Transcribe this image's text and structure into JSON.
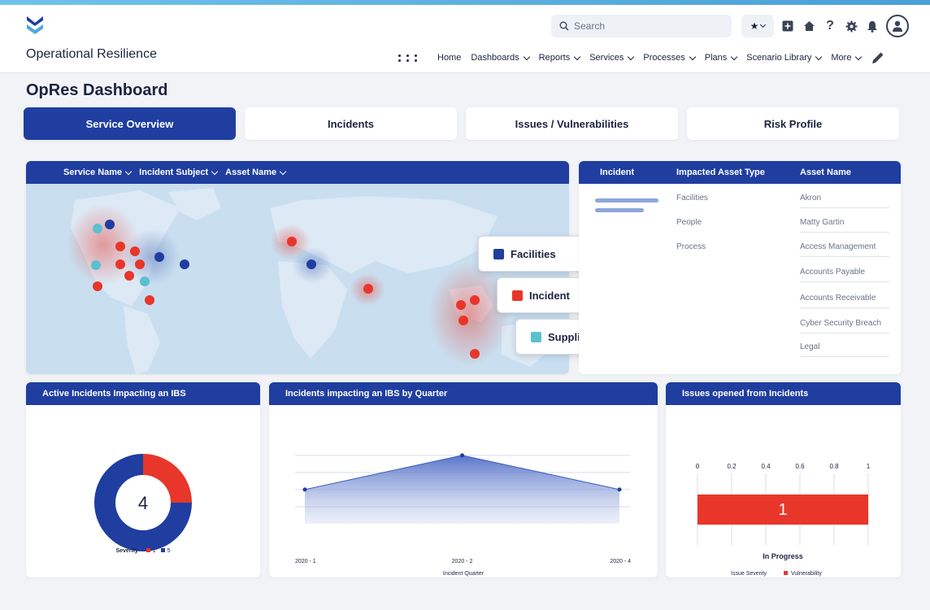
{
  "app": {
    "title": "Operational Resilience"
  },
  "search": {
    "placeholder": "Search"
  },
  "nav": {
    "items": [
      {
        "label": "Home",
        "dropdown": false
      },
      {
        "label": "Dashboards",
        "dropdown": true
      },
      {
        "label": "Reports",
        "dropdown": true
      },
      {
        "label": "Services",
        "dropdown": true
      },
      {
        "label": "Processes",
        "dropdown": true
      },
      {
        "label": "Plans",
        "dropdown": true
      },
      {
        "label": "Scenario Library",
        "dropdown": true
      },
      {
        "label": "More",
        "dropdown": true
      }
    ]
  },
  "page": {
    "title": "OpRes Dashboard"
  },
  "tabs": [
    {
      "label": "Service Overview",
      "active": true
    },
    {
      "label": "Incidents",
      "active": false
    },
    {
      "label": "Issues / Vulnerabilities",
      "active": false
    },
    {
      "label": "Risk Profile",
      "active": false
    }
  ],
  "map": {
    "filters": [
      "Service Name",
      "Incident Subject",
      "Asset Name"
    ],
    "legend": [
      {
        "label": "Facilities",
        "color": "#1f3ea0"
      },
      {
        "label": "Incident",
        "color": "#e8362a"
      },
      {
        "label": "Supplier",
        "color": "#5bc0cf"
      }
    ]
  },
  "incident_table": {
    "headers": [
      "Incident",
      "Impacted Asset Type",
      "Asset Name"
    ],
    "rows": [
      {
        "type": "Facilities",
        "asset": "Akron"
      },
      {
        "type": "People",
        "asset": "Matty Gartin"
      },
      {
        "type": "Process",
        "asset": "Access Management"
      },
      {
        "type": "",
        "asset": "Accounts Payable"
      },
      {
        "type": "",
        "asset": "Accounts Receivable"
      },
      {
        "type": "",
        "asset": "Cyber Security Breach"
      },
      {
        "type": "",
        "asset": "Legal"
      }
    ]
  },
  "colors": {
    "primary": "#1f3ea0",
    "red": "#e8362a",
    "teal": "#5bc0cf"
  },
  "chart_data": [
    {
      "type": "pie",
      "title": "Active Incidents Impacting an IBS",
      "center_value": "4",
      "legend_title": "Severity",
      "categories": [
        "1",
        "5"
      ],
      "values": [
        1,
        3
      ],
      "colors": [
        "#e8362a",
        "#1f3ea0"
      ]
    },
    {
      "type": "area",
      "title": "Incidents impacting an IBS by Quarter",
      "xlabel": "Incident Quarter",
      "categories": [
        "2020 - 1",
        "2020 - 2",
        "2020 - 4"
      ],
      "values": [
        1,
        2,
        1
      ],
      "ylim": [
        0,
        2.4
      ],
      "grid": true
    },
    {
      "type": "bar",
      "orientation": "horizontal",
      "title": "Issues opened from Incidents",
      "categories": [
        "In Progress"
      ],
      "series": [
        {
          "name": "Vulnerability",
          "values": [
            1
          ]
        }
      ],
      "data_labels": [
        "1"
      ],
      "xlim": [
        0,
        1
      ],
      "xticks": [
        "0",
        "0.2",
        "0.4",
        "0.6",
        "0.8",
        "1"
      ],
      "legend_title": "Issue Severity",
      "grid": true
    }
  ]
}
